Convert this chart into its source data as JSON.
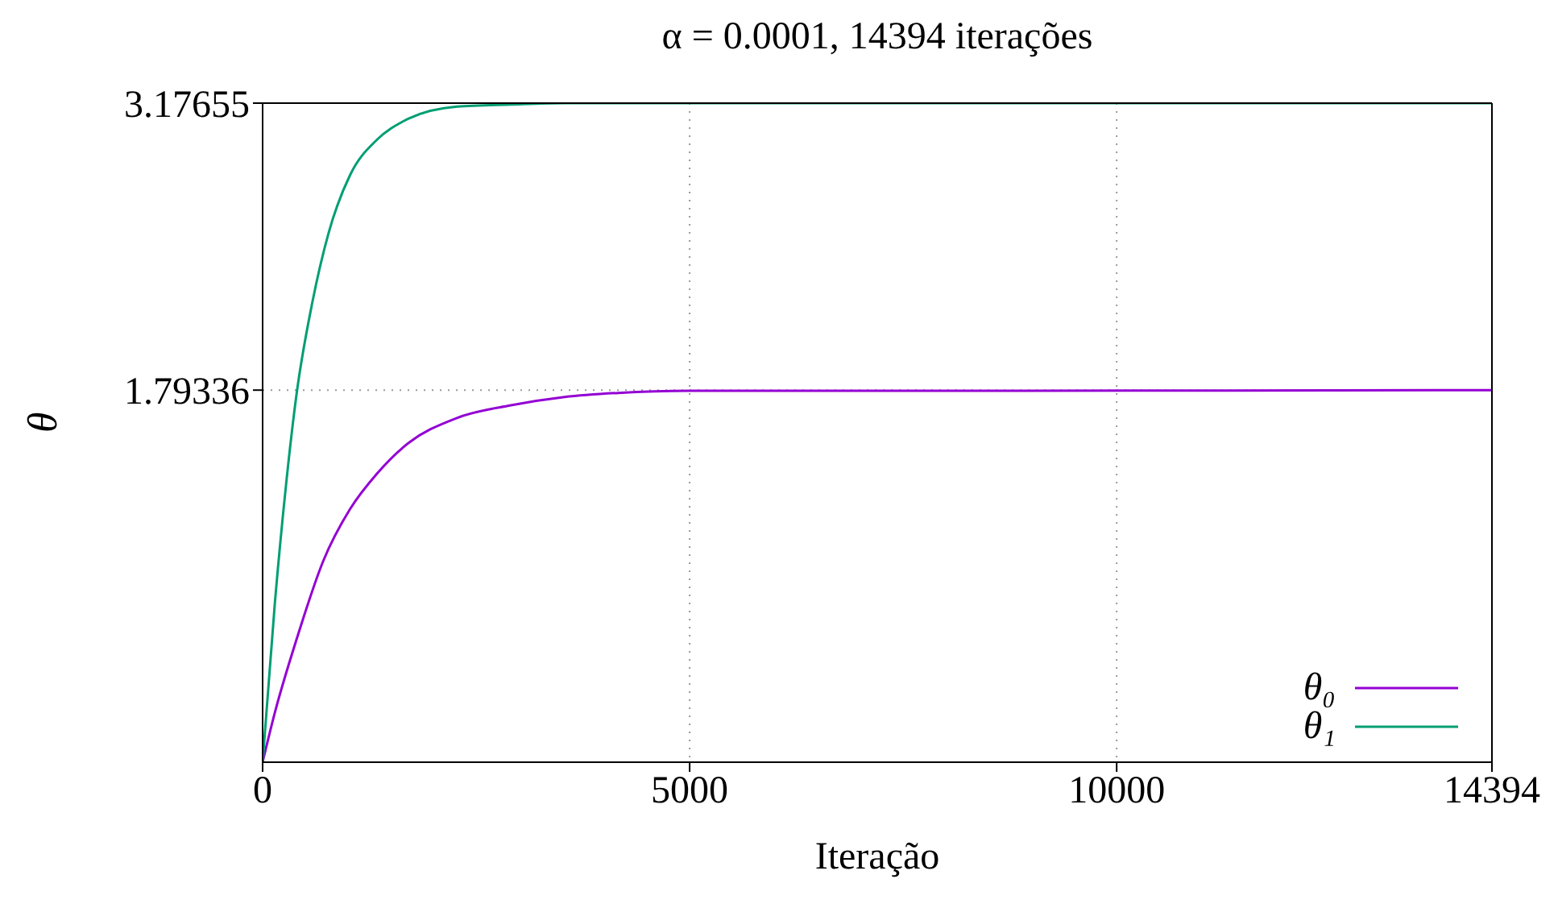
{
  "chart_data": {
    "type": "line",
    "title": "α = 0.0001, 14394 iterações",
    "xlabel": "Iteração",
    "ylabel": "θ",
    "xlim": [
      0,
      14394
    ],
    "xticks": [
      0,
      5000,
      10000,
      14394
    ],
    "ylim": [
      0,
      3.17655
    ],
    "yticks": [
      1.79336,
      3.17655
    ],
    "grid": true,
    "legend": "bottom right",
    "marker": "none",
    "line_style": "solid",
    "series": [
      {
        "name": "θ₀",
        "color": "#9400d3",
        "x": [
          0,
          144,
          396,
          710,
          1024,
          1338,
          1652,
          2280,
          2908,
          3535,
          4164,
          5000,
          7000,
          14394
        ],
        "values": [
          0,
          0.24,
          0.59,
          0.97,
          1.22,
          1.39,
          1.52,
          1.66,
          1.72,
          1.76,
          1.78,
          1.79,
          1.79,
          1.79336
        ]
      },
      {
        "name": "θ₁",
        "color": "#009e73",
        "x": [
          0,
          144,
          270,
          396,
          584,
          772,
          1024,
          1338,
          1652,
          2280,
          2908,
          3535,
          14394
        ],
        "values": [
          0,
          0.77,
          1.32,
          1.77,
          2.22,
          2.55,
          2.83,
          3.0,
          3.09,
          3.16,
          3.17,
          3.17655,
          3.17655
        ]
      }
    ]
  }
}
